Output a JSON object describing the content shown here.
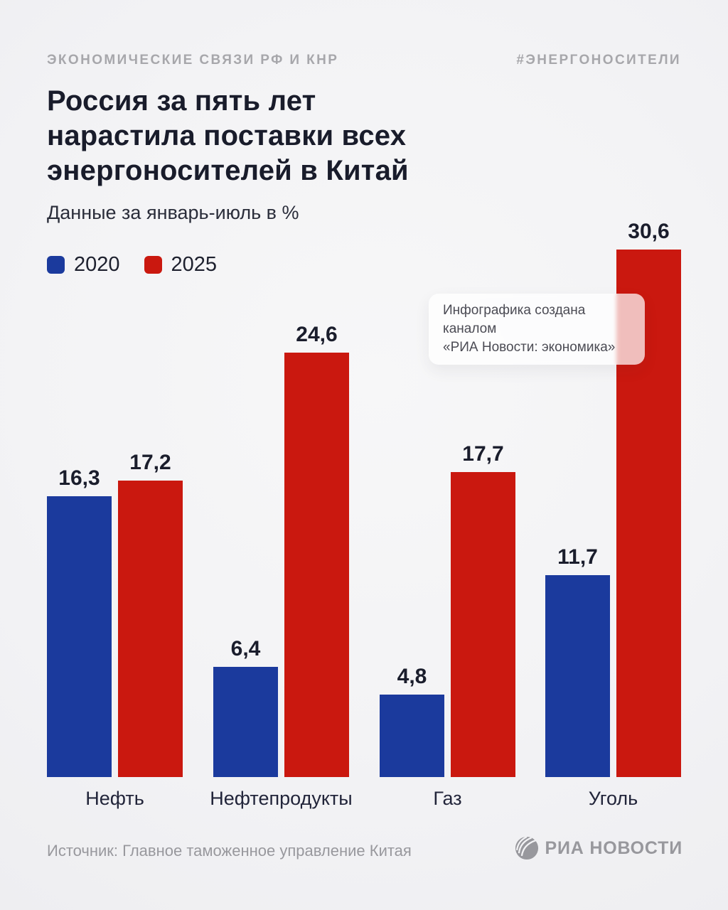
{
  "header": {
    "kicker": "ЭКОНОМИЧЕСКИЕ СВЯЗИ РФ И КНР",
    "hashtag": "#ЭНЕРГОНОСИТЕЛИ"
  },
  "title_lines": [
    "Россия за пять лет",
    "нарастила поставки всех",
    "энергоносителей в Китай"
  ],
  "subtitle": "Данные за январь-июль в %",
  "legend": [
    {
      "label": "2020",
      "color": "#1b3a9d"
    },
    {
      "label": "2025",
      "color": "#ca180f"
    }
  ],
  "note": {
    "line1": "Инфографика создана каналом",
    "line2": "«РИА Новости: экономика»"
  },
  "footer": {
    "source": "Источник: Главное таможенное управление Китая",
    "brand": "РИА НОВОСТИ"
  },
  "colors": {
    "blue": "#1b3a9d",
    "red": "#ca180f",
    "ink": "#191c2b",
    "muted_gray": "#98989d"
  },
  "chart_data": {
    "type": "bar",
    "title": "Россия за пять лет нарастила поставки всех энергоносителей в Китай",
    "subtitle": "Данные за январь-июль в %",
    "unit": "%",
    "categories": [
      "Нефть",
      "Нефтепродукты",
      "Газ",
      "Уголь"
    ],
    "series": [
      {
        "name": "2020",
        "color": "#1b3a9d",
        "values": [
          16.3,
          6.4,
          4.8,
          11.7
        ],
        "labels": [
          "16,3",
          "6,4",
          "4,8",
          "11,7"
        ]
      },
      {
        "name": "2025",
        "color": "#ca180f",
        "values": [
          17.2,
          24.6,
          17.7,
          30.6
        ],
        "labels": [
          "17,2",
          "24,6",
          "17,7",
          "30,6"
        ]
      }
    ],
    "ylim": [
      0,
      31
    ],
    "grid": false,
    "legend_position": "top-left",
    "value_labels": "above-bars",
    "source": "Источник: Главное таможенное управление Китая"
  }
}
